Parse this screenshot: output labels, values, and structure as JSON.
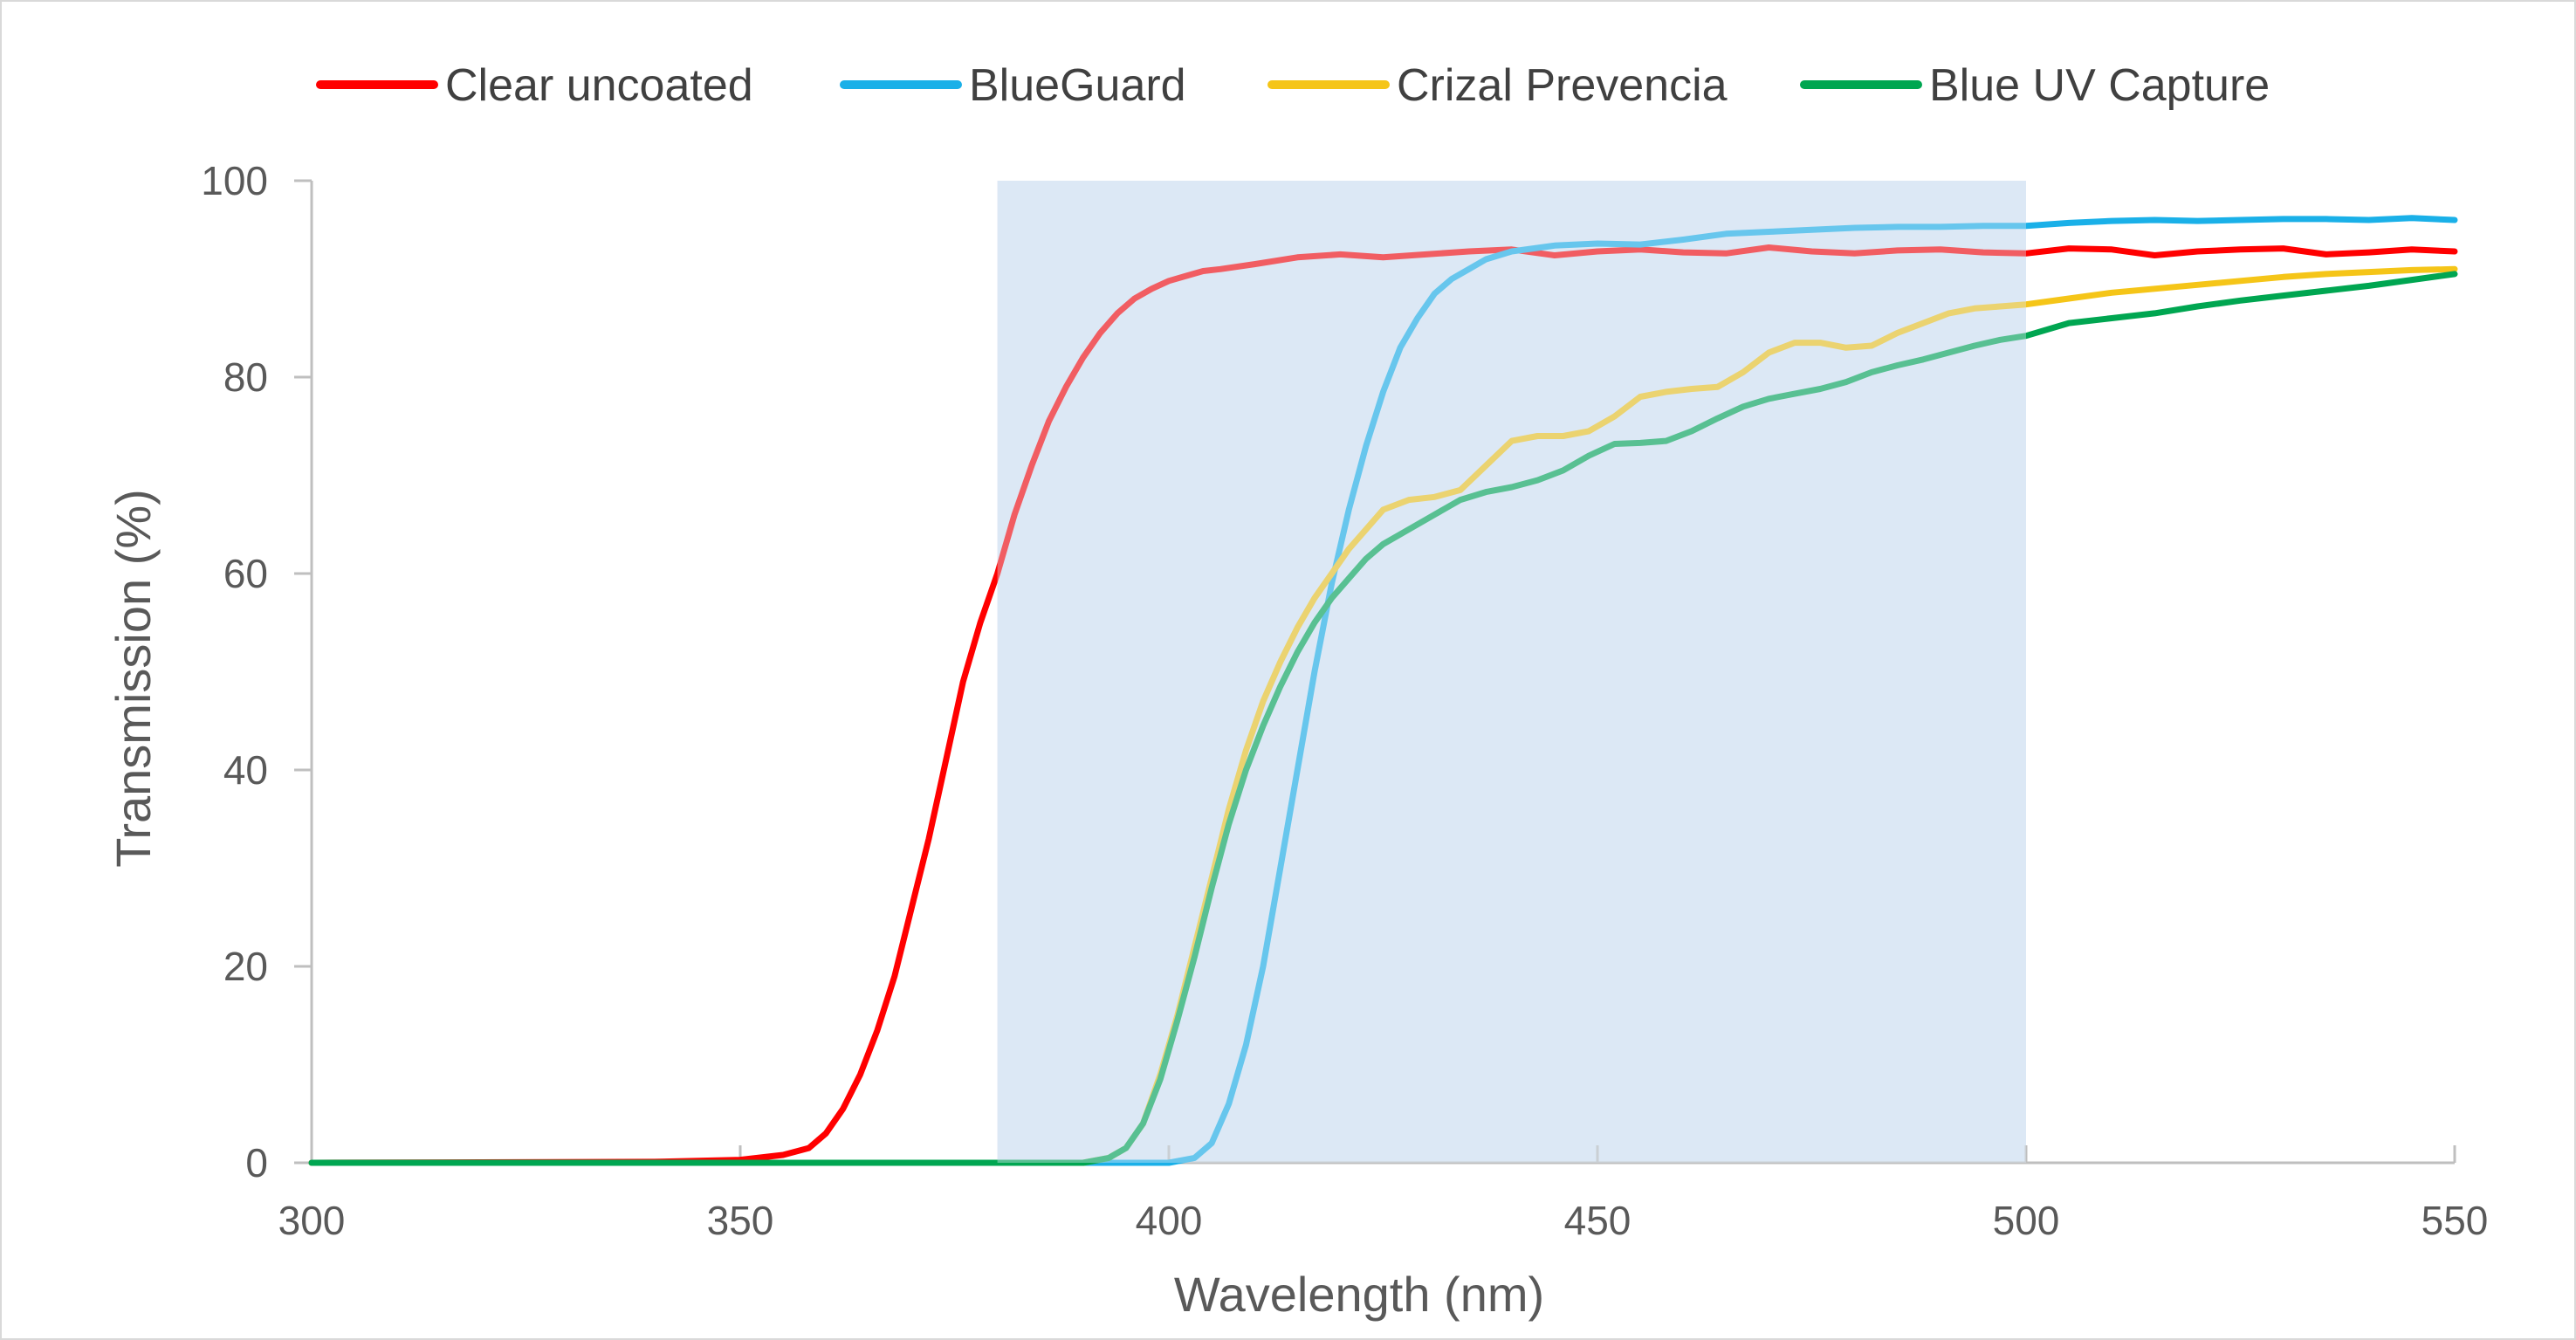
{
  "chart_data": {
    "type": "line",
    "title": "",
    "xlabel": "Wavelength (nm)",
    "ylabel": "Transmission (%)",
    "xlim": [
      300,
      550
    ],
    "ylim": [
      0,
      100
    ],
    "xticks": [
      "300",
      "350",
      "400",
      "450",
      "500",
      "550"
    ],
    "yticks": [
      "0",
      "20",
      "40",
      "60",
      "80",
      "100"
    ],
    "grid": false,
    "legend_position": "top",
    "highlight_band": {
      "x": [
        380,
        500
      ],
      "color": "#dce8f5"
    },
    "series": [
      {
        "name": "Clear uncoated",
        "color": "#ff0000",
        "x": [
          300,
          340,
          350,
          355,
          358,
          360,
          362,
          364,
          366,
          368,
          370,
          372,
          374,
          376,
          378,
          380,
          382,
          384,
          386,
          388,
          390,
          392,
          394,
          396,
          398,
          400,
          402,
          404,
          406,
          410,
          415,
          420,
          425,
          430,
          435,
          440,
          445,
          450,
          455,
          460,
          465,
          470,
          475,
          480,
          485,
          490,
          495,
          500,
          505,
          510,
          515,
          520,
          525,
          530,
          535,
          540,
          545,
          550
        ],
        "y": [
          0,
          0.1,
          0.3,
          0.8,
          1.5,
          3,
          5.5,
          9,
          13.5,
          19,
          26,
          33,
          41,
          49,
          55,
          60,
          66,
          71,
          75.5,
          79,
          82,
          84.5,
          86.5,
          88,
          89,
          89.8,
          90.3,
          90.8,
          91,
          91.5,
          92.2,
          92.5,
          92.2,
          92.5,
          92.8,
          93,
          92.4,
          92.8,
          93,
          92.7,
          92.6,
          93.2,
          92.8,
          92.6,
          92.9,
          93,
          92.7,
          92.6,
          93.1,
          93,
          92.4,
          92.8,
          93,
          93.1,
          92.5,
          92.7,
          93,
          92.8
        ]
      },
      {
        "name": "BlueGuard",
        "color": "#1ab0e8",
        "x": [
          300,
          400,
          403,
          405,
          407,
          409,
          411,
          413,
          415,
          417,
          419,
          421,
          423,
          425,
          427,
          429,
          431,
          433,
          435,
          437,
          440,
          445,
          450,
          455,
          460,
          465,
          470,
          475,
          480,
          485,
          490,
          495,
          500,
          505,
          510,
          515,
          520,
          525,
          530,
          535,
          540,
          545,
          550
        ],
        "y": [
          0,
          0,
          0.5,
          2,
          6,
          12,
          20,
          30,
          40,
          50,
          59,
          66.5,
          73,
          78.5,
          83,
          86,
          88.5,
          90,
          91,
          92,
          92.8,
          93.4,
          93.6,
          93.5,
          94,
          94.6,
          94.8,
          95,
          95.2,
          95.3,
          95.3,
          95.4,
          95.4,
          95.7,
          95.9,
          96,
          95.9,
          96,
          96.1,
          96.1,
          96,
          96.2,
          96
        ]
      },
      {
        "name": "Crizal Prevencia",
        "color": "#f5c518",
        "x": [
          300,
          390,
          393,
          395,
          397,
          399,
          401,
          403,
          405,
          407,
          409,
          411,
          413,
          415,
          417,
          419,
          421,
          423,
          425,
          428,
          431,
          434,
          437,
          440,
          443,
          446,
          449,
          452,
          455,
          458,
          461,
          464,
          467,
          470,
          473,
          476,
          479,
          482,
          485,
          488,
          491,
          494,
          497,
          500,
          505,
          510,
          515,
          520,
          525,
          530,
          535,
          540,
          545,
          550
        ],
        "y": [
          0,
          0,
          0.5,
          1.5,
          4,
          9,
          15,
          22,
          29,
          36,
          42,
          47,
          51,
          54.5,
          57.5,
          60,
          62.5,
          64.5,
          66.5,
          67.5,
          67.8,
          68.5,
          71,
          73.5,
          74,
          74,
          74.5,
          76,
          78,
          78.5,
          78.8,
          79,
          80.5,
          82.5,
          83.5,
          83.5,
          83,
          83.2,
          84.5,
          85.5,
          86.5,
          87,
          87.2,
          87.4,
          88,
          88.6,
          89,
          89.4,
          89.8,
          90.2,
          90.5,
          90.7,
          90.9,
          91
        ]
      },
      {
        "name": "Blue UV Capture",
        "color": "#00a651",
        "x": [
          300,
          390,
          393,
          395,
          397,
          399,
          401,
          403,
          405,
          407,
          409,
          411,
          413,
          415,
          417,
          419,
          421,
          423,
          425,
          428,
          431,
          434,
          437,
          440,
          443,
          446,
          449,
          452,
          455,
          458,
          461,
          464,
          467,
          470,
          473,
          476,
          479,
          482,
          485,
          488,
          491,
          494,
          497,
          500,
          505,
          510,
          515,
          520,
          525,
          530,
          535,
          540,
          545,
          550
        ],
        "y": [
          0,
          0,
          0.5,
          1.5,
          4,
          8.5,
          14.5,
          21,
          28,
          34.5,
          40,
          44.5,
          48.5,
          52,
          55,
          57.5,
          59.5,
          61.5,
          63,
          64.5,
          66,
          67.5,
          68.3,
          68.8,
          69.5,
          70.5,
          72,
          73.2,
          73.3,
          73.5,
          74.5,
          75.8,
          77,
          77.8,
          78.3,
          78.8,
          79.5,
          80.5,
          81.2,
          81.8,
          82.5,
          83.2,
          83.8,
          84.2,
          85.5,
          86,
          86.5,
          87.2,
          87.8,
          88.3,
          88.8,
          89.3,
          89.9,
          90.5
        ]
      }
    ]
  }
}
